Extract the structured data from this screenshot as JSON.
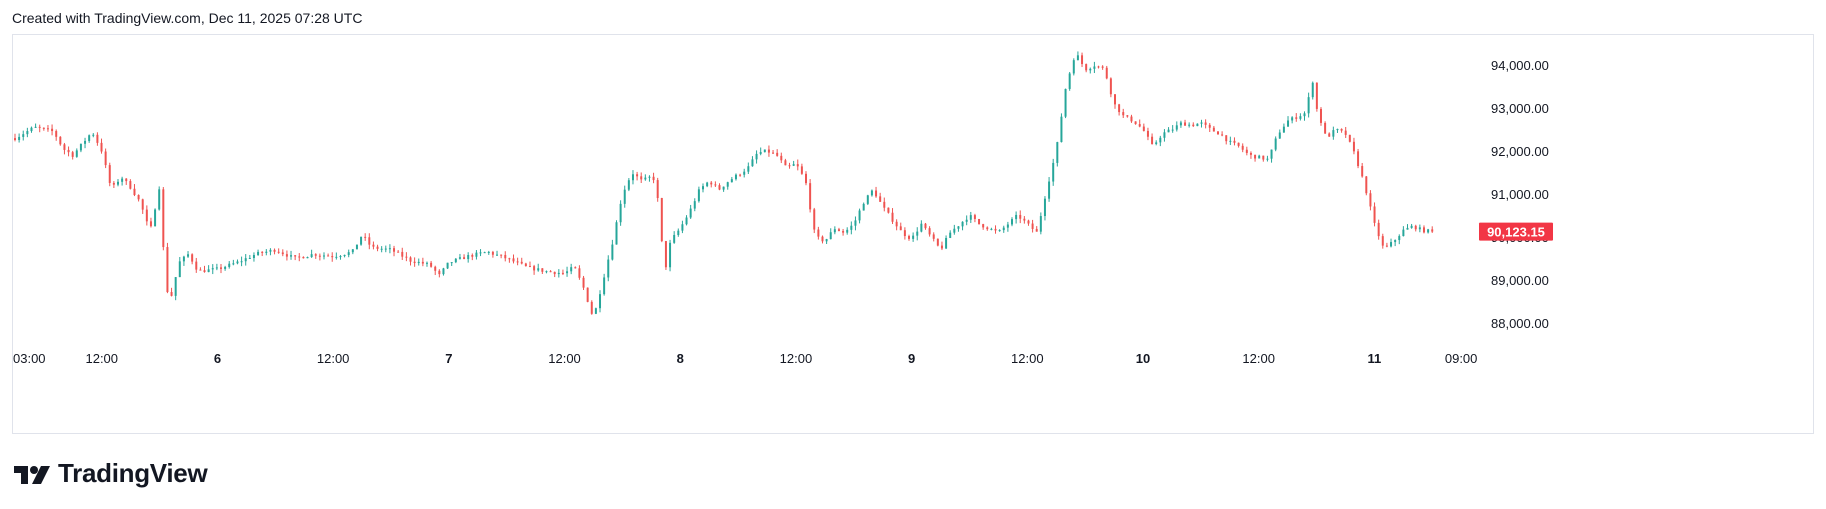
{
  "header": {
    "text": "Created with TradingView.com, Dec 11, 2025 07:28 UTC"
  },
  "brand": {
    "name": "TradingView",
    "icon": "tradingview-logo-icon"
  },
  "colors": {
    "up": "#26a69a",
    "down": "#ef5350",
    "grid": "#e0e3eb",
    "text": "#131722",
    "price_badge": "#f23645"
  },
  "chart_data": {
    "type": "candlestick",
    "y_axis": {
      "ticks": [
        88000,
        89000,
        90000,
        91000,
        92000,
        93000,
        94000
      ],
      "tick_labels": [
        "88,000.00",
        "89,000.00",
        "90,000.00",
        "91,000.00",
        "92,000.00",
        "93,000.00",
        "94,000.00"
      ],
      "range": [
        87600,
        94700
      ],
      "position": "right"
    },
    "x_axis": {
      "range_hours": [
        0,
        126
      ],
      "ticks": [
        {
          "label": "03:00",
          "hour": 0,
          "bold": false
        },
        {
          "label": "12:00",
          "hour": 9,
          "bold": false
        },
        {
          "label": "6",
          "hour": 21,
          "bold": true
        },
        {
          "label": "12:00",
          "hour": 33,
          "bold": false
        },
        {
          "label": "7",
          "hour": 45,
          "bold": true
        },
        {
          "label": "12:00",
          "hour": 57,
          "bold": false
        },
        {
          "label": "8",
          "hour": 69,
          "bold": true
        },
        {
          "label": "12:00",
          "hour": 81,
          "bold": false
        },
        {
          "label": "9",
          "hour": 93,
          "bold": true
        },
        {
          "label": "12:00",
          "hour": 105,
          "bold": false
        },
        {
          "label": "10",
          "hour": 117,
          "bold": true
        },
        {
          "label": "12:00",
          "hour": 129,
          "bold": false
        },
        {
          "label": "11",
          "hour": 141,
          "bold": true
        },
        {
          "label": "09:00",
          "hour": 150,
          "bold": false
        }
      ]
    },
    "last_price": {
      "value": 90123.15,
      "label": "90,123.15"
    },
    "price_path": [
      [
        0,
        92300
      ],
      [
        2,
        92550
      ],
      [
        4,
        92450
      ],
      [
        5,
        92050
      ],
      [
        6,
        91900
      ],
      [
        8,
        92450
      ],
      [
        9,
        92000
      ],
      [
        10,
        91100
      ],
      [
        11,
        91400
      ],
      [
        12,
        91150
      ],
      [
        13,
        90800
      ],
      [
        14,
        90100
      ],
      [
        15,
        91200
      ],
      [
        15.5,
        89300
      ],
      [
        16,
        88400
      ],
      [
        17,
        89400
      ],
      [
        18,
        89600
      ],
      [
        19,
        89200
      ],
      [
        21,
        89250
      ],
      [
        23,
        89400
      ],
      [
        25,
        89600
      ],
      [
        27,
        89700
      ],
      [
        29,
        89500
      ],
      [
        31,
        89600
      ],
      [
        33,
        89550
      ],
      [
        35,
        89650
      ],
      [
        36,
        90050
      ],
      [
        37,
        89750
      ],
      [
        39,
        89700
      ],
      [
        41,
        89450
      ],
      [
        43,
        89350
      ],
      [
        44,
        89100
      ],
      [
        45,
        89400
      ],
      [
        47,
        89550
      ],
      [
        49,
        89650
      ],
      [
        51,
        89500
      ],
      [
        53,
        89300
      ],
      [
        55,
        89200
      ],
      [
        57,
        89150
      ],
      [
        58,
        89300
      ],
      [
        59,
        88800
      ],
      [
        60,
        88100
      ],
      [
        61,
        89000
      ],
      [
        62,
        89900
      ],
      [
        63,
        91000
      ],
      [
        64,
        91500
      ],
      [
        65,
        91300
      ],
      [
        66,
        91400
      ],
      [
        66.5,
        91300
      ],
      [
        67,
        90000
      ],
      [
        67.5,
        89300
      ],
      [
        68,
        89900
      ],
      [
        69,
        90200
      ],
      [
        70,
        90600
      ],
      [
        71,
        91100
      ],
      [
        72,
        91300
      ],
      [
        73,
        91100
      ],
      [
        74,
        91300
      ],
      [
        75,
        91450
      ],
      [
        76,
        91600
      ],
      [
        77,
        91950
      ],
      [
        78,
        92000
      ],
      [
        79,
        91900
      ],
      [
        80,
        91600
      ],
      [
        81,
        91700
      ],
      [
        82,
        91300
      ],
      [
        83,
        90000
      ],
      [
        84,
        89900
      ],
      [
        85,
        90200
      ],
      [
        86,
        90100
      ],
      [
        87,
        90300
      ],
      [
        88,
        90800
      ],
      [
        89,
        91100
      ],
      [
        90,
        90700
      ],
      [
        91,
        90400
      ],
      [
        92,
        90100
      ],
      [
        93,
        89950
      ],
      [
        94,
        90300
      ],
      [
        95,
        90000
      ],
      [
        96,
        89700
      ],
      [
        97,
        90100
      ],
      [
        98,
        90300
      ],
      [
        99,
        90500
      ],
      [
        100,
        90300
      ],
      [
        101,
        90200
      ],
      [
        102,
        90100
      ],
      [
        103,
        90300
      ],
      [
        104,
        90500
      ],
      [
        105,
        90300
      ],
      [
        106,
        90100
      ],
      [
        107,
        91100
      ],
      [
        108,
        92000
      ],
      [
        109,
        93500
      ],
      [
        110,
        94300
      ],
      [
        111,
        93900
      ],
      [
        112,
        94000
      ],
      [
        113,
        93900
      ],
      [
        114,
        93100
      ],
      [
        115,
        92800
      ],
      [
        116,
        92700
      ],
      [
        117,
        92500
      ],
      [
        118,
        92100
      ],
      [
        119,
        92400
      ],
      [
        120,
        92500
      ],
      [
        121,
        92650
      ],
      [
        122,
        92600
      ],
      [
        123,
        92650
      ],
      [
        124,
        92500
      ],
      [
        125,
        92400
      ],
      [
        126,
        92200
      ],
      [
        127,
        92100
      ],
      [
        128,
        91900
      ],
      [
        129,
        91850
      ],
      [
        130,
        91800
      ],
      [
        131,
        92400
      ],
      [
        132,
        92700
      ],
      [
        133,
        92800
      ],
      [
        134,
        92900
      ],
      [
        134.5,
        93800
      ],
      [
        135,
        93000
      ],
      [
        136,
        92300
      ],
      [
        137,
        92500
      ],
      [
        138,
        92400
      ],
      [
        139,
        91900
      ],
      [
        140,
        91200
      ],
      [
        141,
        90300
      ],
      [
        142,
        89700
      ],
      [
        143,
        89900
      ],
      [
        144,
        90150
      ],
      [
        145,
        90250
      ],
      [
        146,
        90150
      ],
      [
        147,
        90123
      ]
    ],
    "candle_count": 345
  }
}
